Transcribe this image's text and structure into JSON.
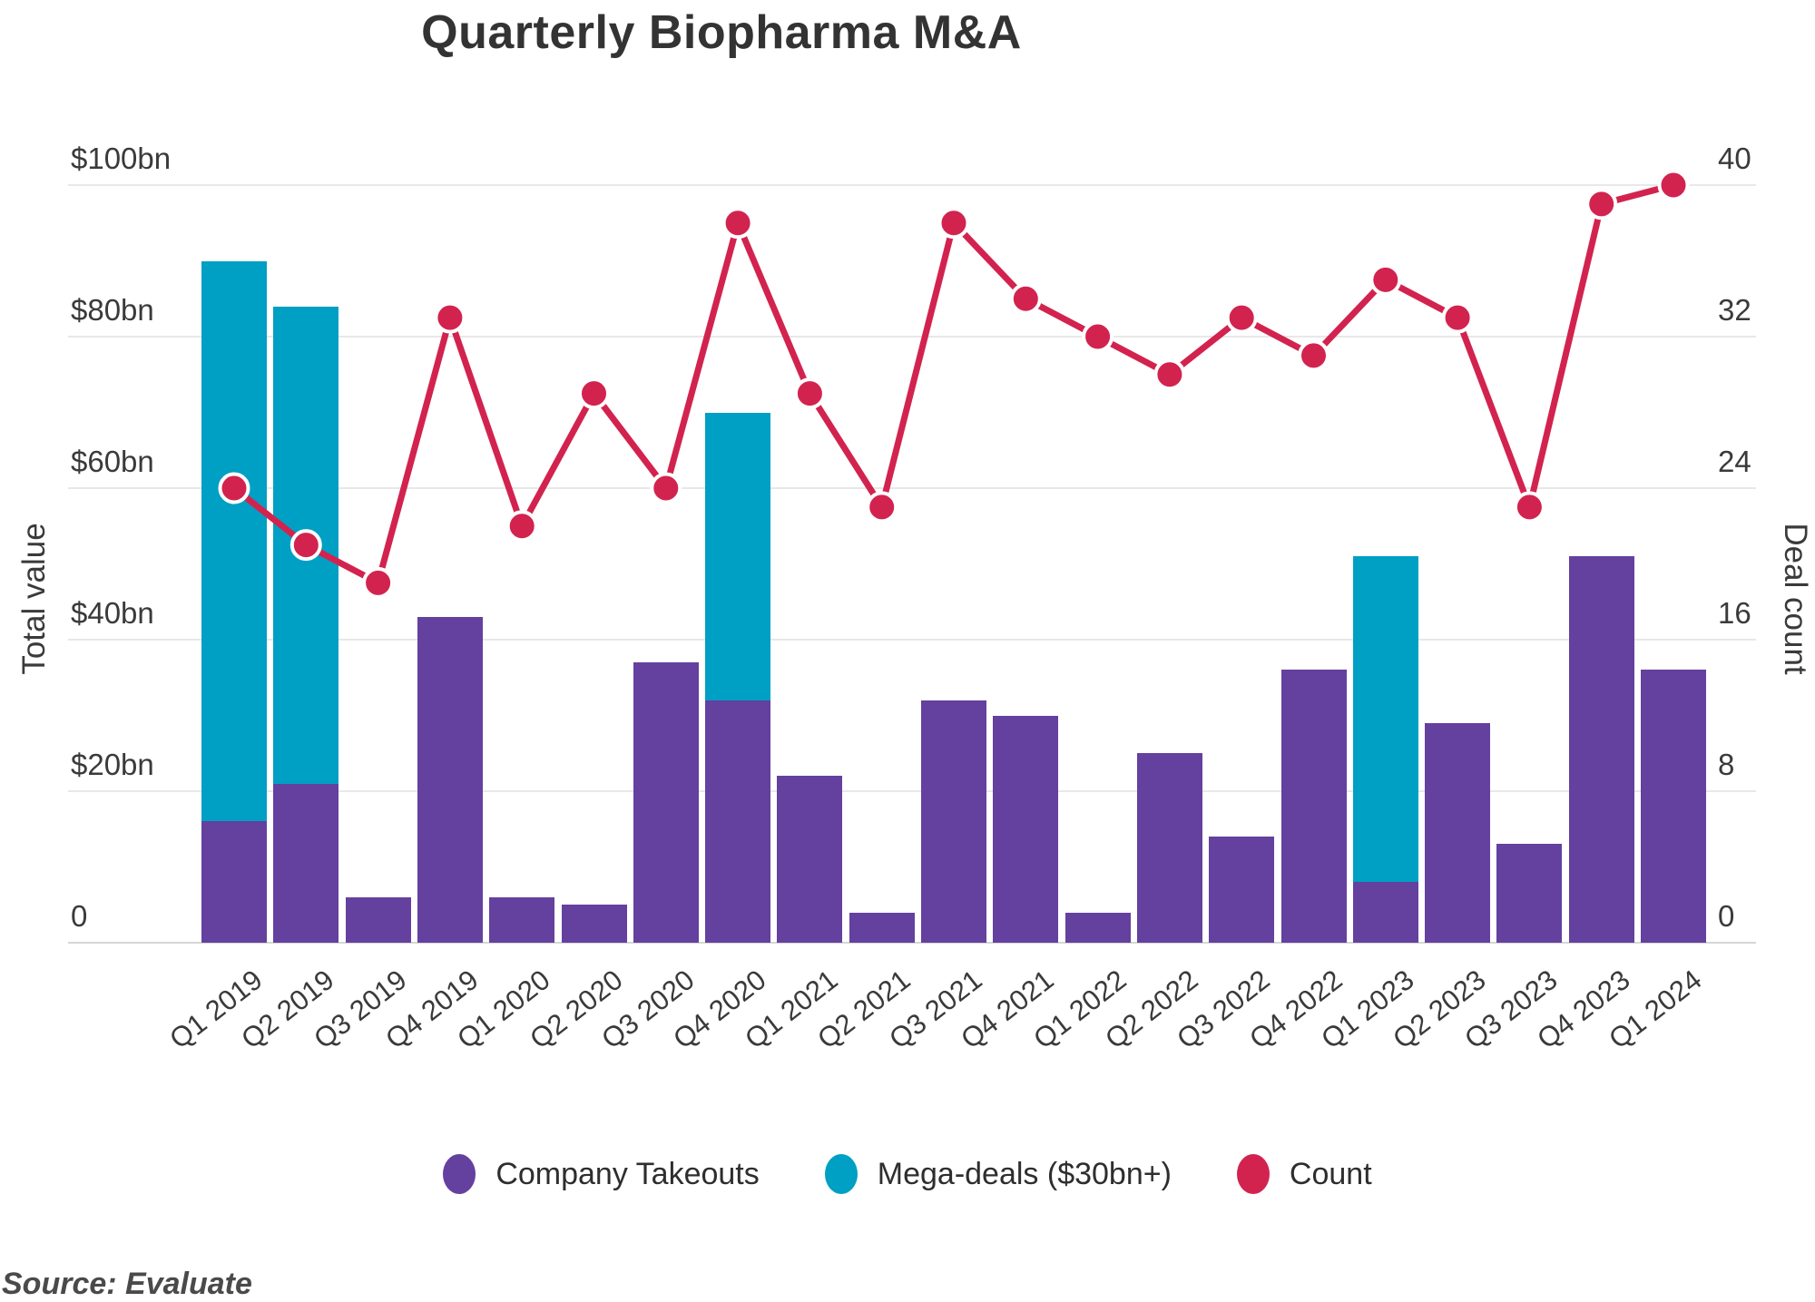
{
  "title": "Quarterly Biopharma M&A",
  "source": "Source: Evaluate",
  "colors": {
    "takeouts_purple": "#64409f",
    "megadeals_teal": "#009fc4",
    "count_crimson": "#d2234f",
    "gridline": "#e8e8e8",
    "axis_text": "#3a3a3a"
  },
  "y_left": {
    "label": "Total value",
    "ticks": [
      "$100bn",
      "$80bn",
      "$60bn",
      "$40bn",
      "$20bn",
      "0"
    ],
    "tick_values": [
      100,
      80,
      60,
      40,
      20,
      0
    ]
  },
  "y_right": {
    "label": "Deal count",
    "ticks": [
      "40",
      "32",
      "24",
      "16",
      "8",
      "0"
    ],
    "tick_values": [
      40,
      32,
      24,
      16,
      8,
      0
    ]
  },
  "legend": [
    {
      "label": "Company Takeouts",
      "color": "#64409f"
    },
    {
      "label": "Mega-deals ($30bn+)",
      "color": "#009fc4"
    },
    {
      "label": "Count",
      "color": "#d2234f"
    }
  ],
  "chart_data": {
    "type": "bar",
    "subtype": "stacked-bars-with-line",
    "title": "Quarterly Biopharma M&A",
    "xlabel": "",
    "ylabel_left": "Total value",
    "ylabel_right": "Deal count",
    "ylim_left": [
      0,
      100
    ],
    "ylim_right": [
      0,
      40
    ],
    "grid": true,
    "legend_position": "bottom",
    "categories": [
      "Q1 2019",
      "Q2 2019",
      "Q3 2019",
      "Q4 2019",
      "Q1 2020",
      "Q2 2020",
      "Q3 2020",
      "Q4 2020",
      "Q1 2021",
      "Q2 2021",
      "Q3 2021",
      "Q4 2021",
      "Q1 2022",
      "Q2 2022",
      "Q3 2022",
      "Q4 2022",
      "Q1 2023",
      "Q2 2023",
      "Q3 2023",
      "Q4 2023",
      "Q1 2024"
    ],
    "series": [
      {
        "name": "Company Takeouts",
        "type": "bar",
        "stack": "value",
        "axis": "left",
        "units": "$bn",
        "color": "#64409f",
        "values": [
          16,
          21,
          6,
          43,
          6,
          5,
          37,
          32,
          22,
          4,
          32,
          30,
          4,
          25,
          14,
          36,
          8,
          29,
          13,
          51,
          36
        ]
      },
      {
        "name": "Mega-deals ($30bn+)",
        "type": "bar",
        "stack": "value",
        "axis": "left",
        "units": "$bn",
        "color": "#009fc4",
        "values": [
          74,
          63,
          0,
          0,
          0,
          0,
          0,
          38,
          0,
          0,
          0,
          0,
          0,
          0,
          0,
          0,
          43,
          0,
          0,
          0,
          0
        ]
      },
      {
        "name": "Count",
        "type": "line",
        "axis": "right",
        "units": "deals",
        "color": "#d2234f",
        "marker": "circle-white-ring",
        "values": [
          24,
          21,
          19,
          33,
          22,
          29,
          24,
          38,
          29,
          23,
          38,
          34,
          32,
          30,
          33,
          31,
          35,
          33,
          23,
          39,
          40
        ]
      }
    ]
  }
}
